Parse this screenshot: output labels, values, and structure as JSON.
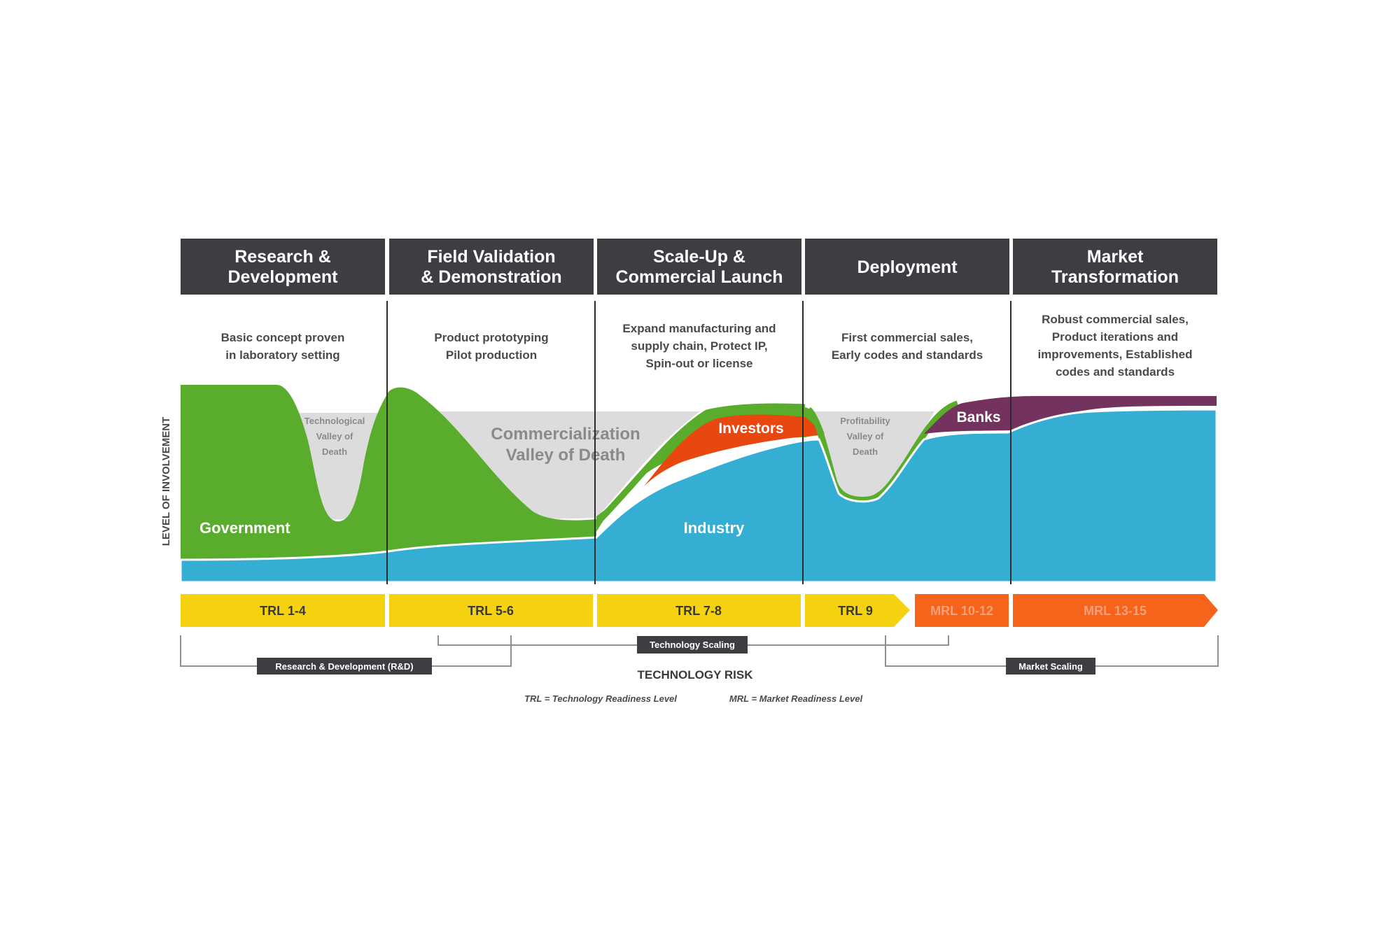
{
  "phases": [
    {
      "title_lines": [
        "Research &",
        "Development"
      ],
      "desc_lines": [
        "Basic concept proven",
        "in laboratory setting"
      ]
    },
    {
      "title_lines": [
        "Field Validation",
        "& Demonstration"
      ],
      "desc_lines": [
        "Product prototyping",
        "Pilot production"
      ]
    },
    {
      "title_lines": [
        "Scale-Up &",
        "Commercial Launch"
      ],
      "desc_lines": [
        "Expand manufacturing and",
        "supply chain, Protect IP,",
        "Spin-out or license"
      ]
    },
    {
      "title_lines": [
        "Deployment"
      ],
      "desc_lines": [
        "First commercial sales,",
        "Early codes and standards"
      ]
    },
    {
      "title_lines": [
        "Market",
        "Transformation"
      ],
      "desc_lines": [
        "Robust commercial sales,",
        "Product iterations and",
        "improvements, Established",
        "codes and standards"
      ]
    }
  ],
  "y_axis_label": "LEVEL OF INVOLVEMENT",
  "areas": {
    "government": "Government",
    "industry": "Industry",
    "investors": "Investors",
    "banks": "Banks"
  },
  "valleys": {
    "technological": [
      "Technological",
      "Valley of",
      "Death"
    ],
    "commercialization": [
      "Commercialization",
      "Valley of Death"
    ],
    "profitability": [
      "Profitability",
      "Valley of",
      "Death"
    ]
  },
  "readiness_levels": [
    {
      "label": "TRL 1-4",
      "kind": "TRL"
    },
    {
      "label": "TRL 5-6",
      "kind": "TRL"
    },
    {
      "label": "TRL 7-8",
      "kind": "TRL"
    },
    {
      "label": "TRL 9",
      "kind": "TRL"
    },
    {
      "label": "MRL 10-12",
      "kind": "MRL"
    },
    {
      "label": "MRL 13-15",
      "kind": "MRL"
    }
  ],
  "scaling_tags": {
    "rd": "Research & Development (R&D)",
    "technology": "Technology Scaling",
    "market": "Market Scaling"
  },
  "x_axis_label": "TECHNOLOGY RISK",
  "legend": {
    "trl": "TRL = Technology Readiness Level",
    "mrl": "MRL = Market Readiness Level"
  },
  "colors": {
    "header": "#3c3e42",
    "government": "#5aad2c",
    "industry": "#35aed4",
    "investors": "#e8480f",
    "banks": "#74325f",
    "valley": "#dcdcdc",
    "trl": "#f5d20f",
    "mrl": "#f5641a",
    "trl_text": "#3a3a3a",
    "mrl_text": "#f6a07a"
  }
}
